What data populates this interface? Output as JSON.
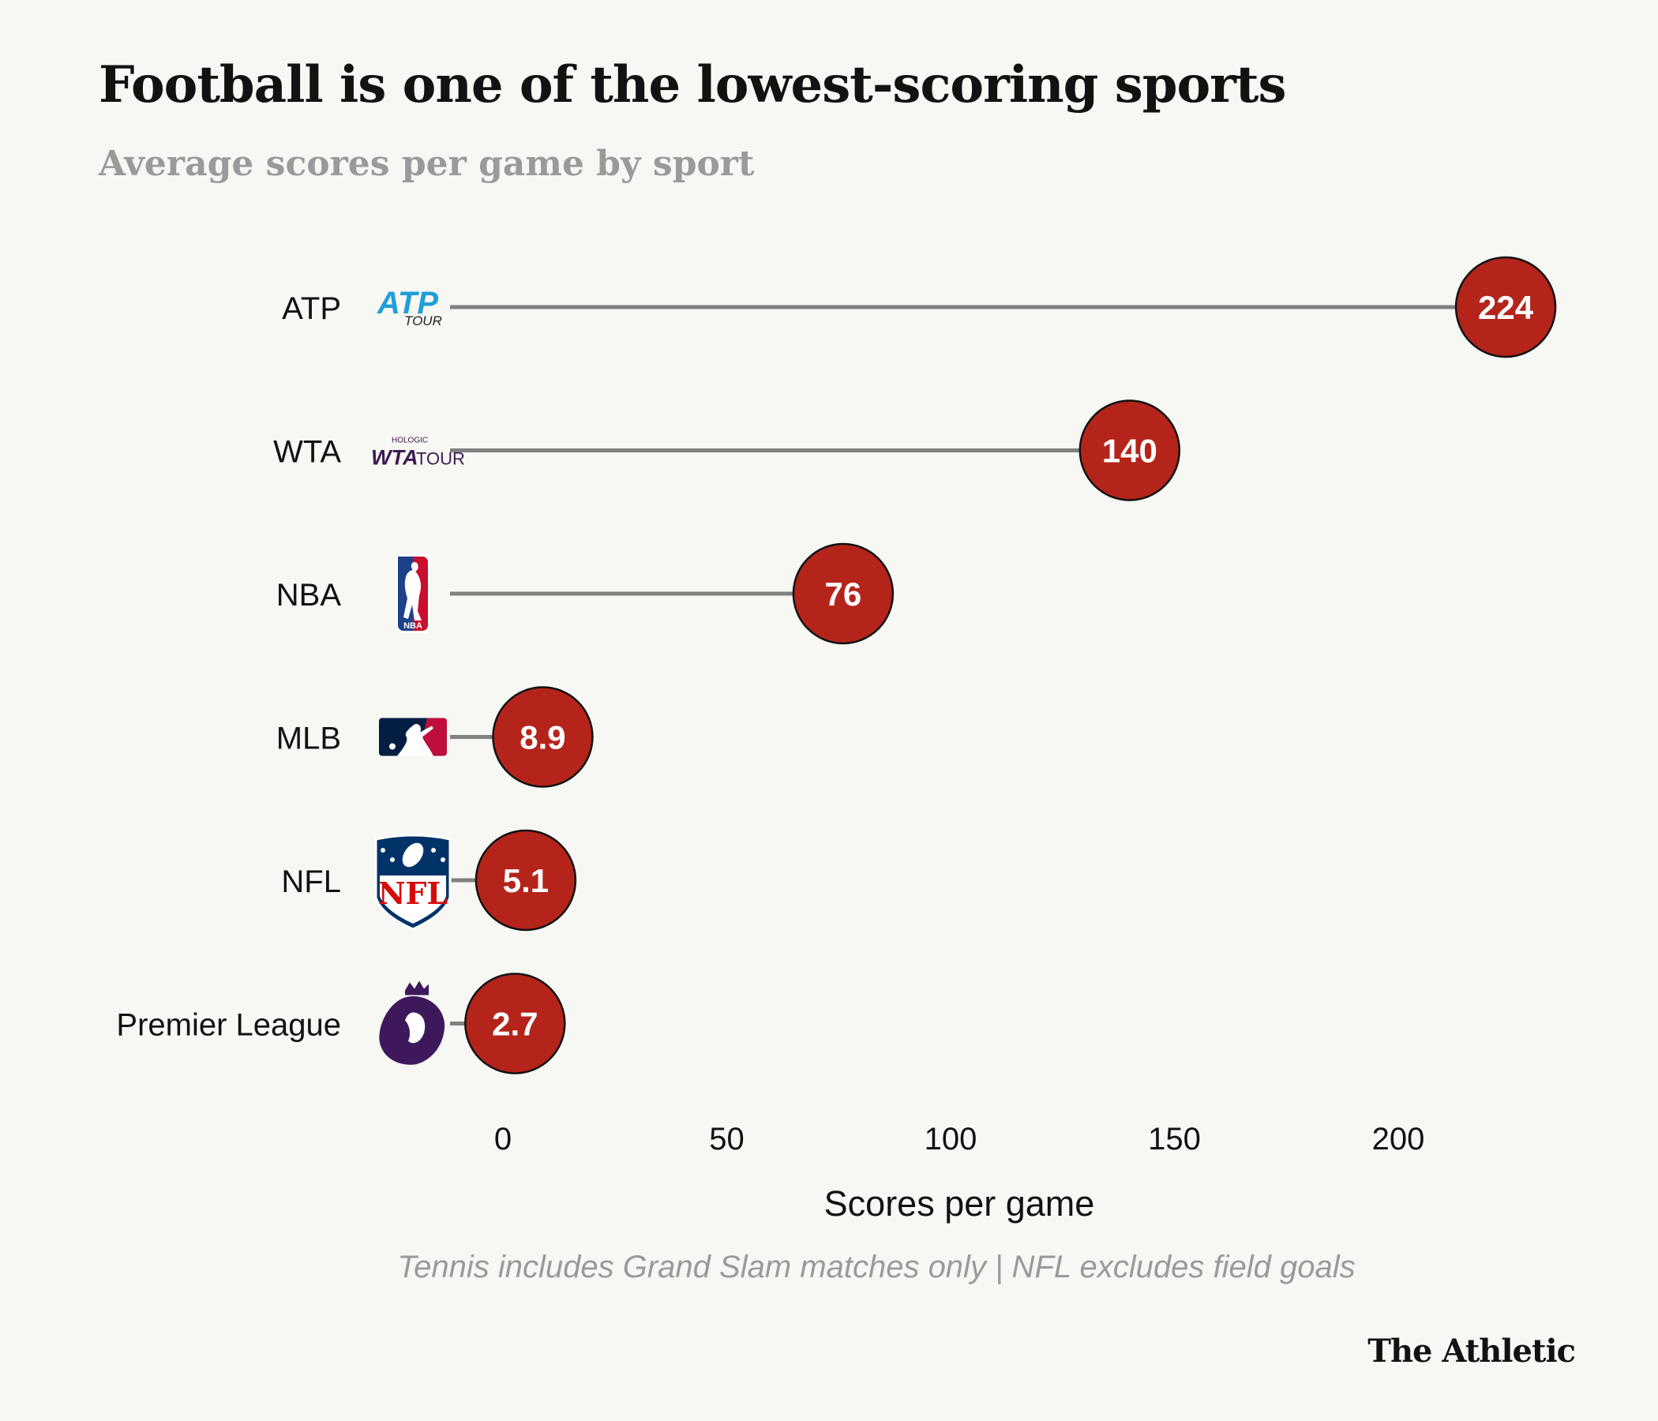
{
  "title": "Football is one of the lowest-scoring sports",
  "subtitle": "Average scores per game by sport",
  "footnote": "Tennis includes Grand Slam matches only | NFL excludes field goals",
  "brand": "The Athletic",
  "colors": {
    "background": "#f7f7f3",
    "dot": "#b5241b",
    "stem": "#808080",
    "text": "#121212",
    "muted": "#9a9a9a"
  },
  "chart_data": {
    "type": "dot",
    "xlabel": "Scores per game",
    "xlim": [
      0,
      224
    ],
    "xticks": [
      0,
      50,
      100,
      150,
      200
    ],
    "grid": false,
    "series": [
      {
        "categories": [
          "ATP",
          "WTA",
          "NBA",
          "MLB",
          "NFL",
          "Premier League"
        ],
        "values": [
          224,
          140,
          76,
          8.9,
          5.1,
          2.7
        ],
        "labels": [
          "224",
          "140",
          "76",
          "8.9",
          "5.1",
          "2.7"
        ],
        "logos": [
          "atp-tour-logo",
          "wta-tour-logo",
          "nba-logo",
          "mlb-logo",
          "nfl-logo",
          "premier-league-logo"
        ],
        "logo_text": [
          "ATP",
          "TOUR",
          "HOLOGIC",
          "WTA",
          "TOUR",
          "NBA",
          "NFL"
        ]
      }
    ]
  }
}
